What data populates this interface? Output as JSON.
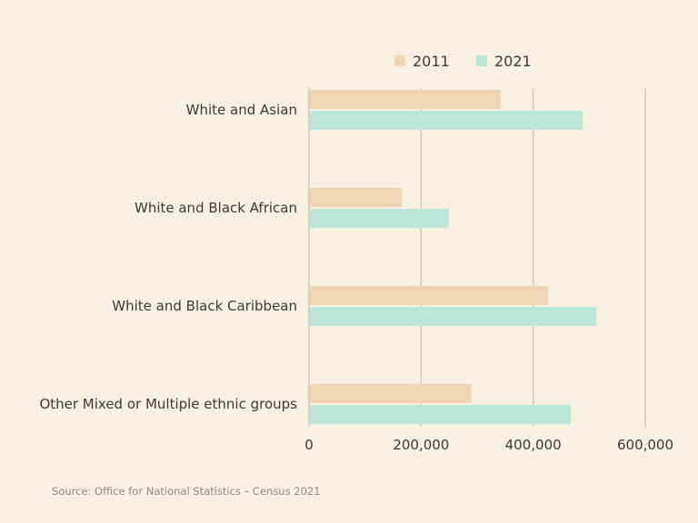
{
  "chart_data": {
    "type": "bar",
    "orientation": "horizontal",
    "categories": [
      "White and Asian",
      "White and Black African",
      "White and Black Caribbean",
      "Other Mixed or Multiple ethnic groups"
    ],
    "series": [
      {
        "name": "2011",
        "color": "#efd5b1",
        "values": [
          341727,
          165974,
          426715,
          289984
        ]
      },
      {
        "name": "2021",
        "color": "#bde6db",
        "values": [
          488225,
          249596,
          513042,
          467113
        ]
      }
    ],
    "xlim": [
      0,
      600000
    ],
    "xticks": [
      0,
      200000,
      400000,
      600000
    ],
    "xtick_labels": [
      "0",
      "200,000",
      "400,000",
      "600,000"
    ],
    "grid": true,
    "legend_position": "top-right"
  },
  "source": "Source: Office for National Statistics – Census 2021"
}
